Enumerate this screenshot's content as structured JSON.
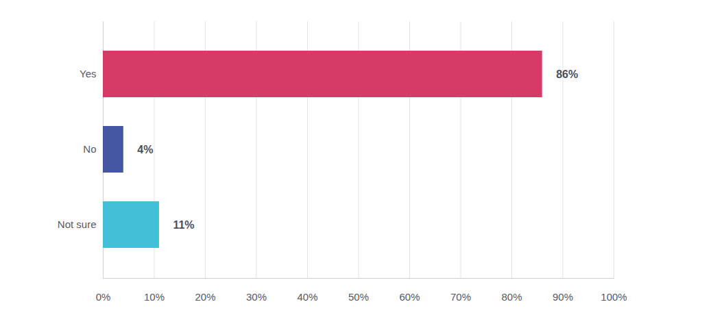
{
  "chart_data": {
    "type": "bar",
    "orientation": "horizontal",
    "categories": [
      "Yes",
      "No",
      "Not sure"
    ],
    "values": [
      86,
      4,
      11
    ],
    "value_labels": [
      "86%",
      "4%",
      "11%"
    ],
    "colors": [
      "#d63a66",
      "#4556a3",
      "#42c0d8"
    ],
    "xlim": [
      0,
      100
    ],
    "xticks": [
      {
        "value": 0,
        "label": "0%"
      },
      {
        "value": 10,
        "label": "10%"
      },
      {
        "value": 20,
        "label": "20%"
      },
      {
        "value": 30,
        "label": "30%"
      },
      {
        "value": 40,
        "label": "40%"
      },
      {
        "value": 50,
        "label": "50%"
      },
      {
        "value": 60,
        "label": "60%"
      },
      {
        "value": 70,
        "label": "70%"
      },
      {
        "value": 80,
        "label": "80%"
      },
      {
        "value": 90,
        "label": "90%"
      },
      {
        "value": 100,
        "label": "100%"
      }
    ],
    "grid": true,
    "data_labels": true
  }
}
